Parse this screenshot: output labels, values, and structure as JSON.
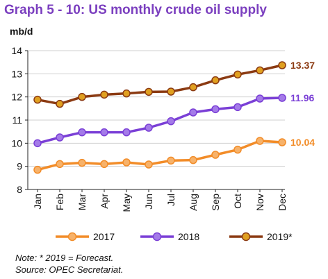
{
  "header": {
    "title": "Graph 5 - 10: US monthly crude oil supply",
    "unit": "mb/d"
  },
  "notes": {
    "line1": "Note: * 2019 = Forecast.",
    "line2": "Source: OPEC Secretariat."
  },
  "chart_data": {
    "type": "line",
    "categories": [
      "Jan",
      "Feb",
      "Mar",
      "Apr",
      "May",
      "Jun",
      "Jul",
      "Aug",
      "Sep",
      "Oct",
      "Nov",
      "Dec"
    ],
    "ylim": [
      8,
      14
    ],
    "yticks": [
      8,
      9,
      10,
      11,
      12,
      13,
      14
    ],
    "ylabel": "mb/d",
    "grid": "horizontal",
    "legend_position": "bottom",
    "series": [
      {
        "name": "2017",
        "color": "#F28C28",
        "marker_fill": "#F7B26A",
        "values": [
          8.85,
          9.1,
          9.15,
          9.1,
          9.17,
          9.08,
          9.25,
          9.27,
          9.5,
          9.72,
          10.1,
          10.04
        ],
        "end_label": "10.04"
      },
      {
        "name": "2018",
        "color": "#7A3FD6",
        "marker_fill": "#A47BE8",
        "values": [
          10.0,
          10.25,
          10.47,
          10.47,
          10.47,
          10.67,
          10.95,
          11.33,
          11.47,
          11.56,
          11.93,
          11.96
        ],
        "end_label": "11.96"
      },
      {
        "name": "2019*",
        "color": "#8B3A12",
        "marker_fill": "#E0A020",
        "values": [
          11.88,
          11.7,
          12.0,
          12.1,
          12.15,
          12.22,
          12.23,
          12.42,
          12.72,
          12.97,
          13.15,
          13.37
        ],
        "end_label": "13.37"
      }
    ]
  }
}
